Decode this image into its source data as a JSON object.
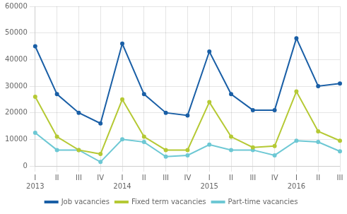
{
  "chart_data": {
    "type": "line",
    "categories": [
      "I",
      "II",
      "III",
      "IV",
      "I",
      "II",
      "III",
      "IV",
      "I",
      "II",
      "III",
      "IV",
      "I",
      "II",
      "III"
    ],
    "series": [
      {
        "name": "Job vacancies",
        "color": "#1a5fa6",
        "values": [
          45000,
          27000,
          20000,
          16000,
          46000,
          27000,
          20000,
          19000,
          43000,
          27000,
          21000,
          21000,
          48000,
          30000,
          31000
        ]
      },
      {
        "name": "Fixed term vacancies",
        "color": "#b5c934",
        "values": [
          26000,
          11000,
          6000,
          4500,
          25000,
          11000,
          6000,
          6000,
          24000,
          11000,
          7000,
          7500,
          28000,
          13000,
          9500
        ]
      },
      {
        "name": "Part-time vacancies",
        "color": "#6dc8d4",
        "values": [
          12500,
          6000,
          6000,
          1500,
          10000,
          9000,
          3500,
          4000,
          8000,
          6000,
          6000,
          4000,
          9500,
          9000,
          5500
        ]
      }
    ],
    "ylim": [
      0,
      60000
    ],
    "yticks": [
      0,
      10000,
      20000,
      30000,
      40000,
      50000,
      60000
    ],
    "grid": true,
    "legend": "bottom",
    "annotations": [
      {
        "text": "2013",
        "x": 0
      },
      {
        "text": "2014",
        "x": 4
      },
      {
        "text": "2015",
        "x": 8
      },
      {
        "text": "2016",
        "x": 12
      }
    ]
  }
}
